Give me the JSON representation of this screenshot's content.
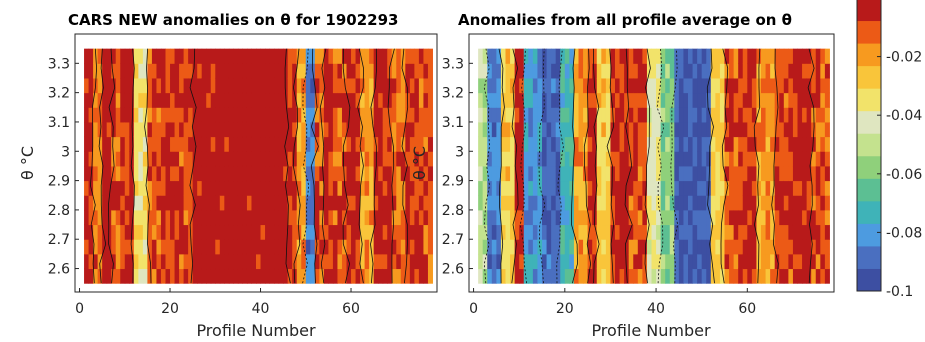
{
  "chart_data": [
    {
      "type": "heatmap",
      "title": "CARS NEW anomalies on θ for 1902293",
      "xlabel": "Profile Number",
      "ylabel": "θ °C",
      "xlim": [
        -1,
        79
      ],
      "ylim": [
        2.52,
        3.4
      ],
      "xticks": [
        0,
        20,
        40,
        60
      ],
      "yticks": [
        2.6,
        2.7,
        2.8,
        2.9,
        3,
        3.1,
        3.2,
        3.3
      ],
      "ytick_labels": [
        "2.6",
        "2.7",
        "2.8",
        "2.9",
        "3",
        "3.1",
        "3.2",
        "3.3"
      ],
      "x_range_profiles": [
        1,
        78
      ],
      "y_range_theta": [
        2.55,
        3.35
      ],
      "contours": true,
      "bands": [
        {
          "x": [
            1,
            3
          ],
          "value": -0.003
        },
        {
          "x": [
            3,
            5
          ],
          "value": -0.015
        },
        {
          "x": [
            5,
            7
          ],
          "value": 0.0
        },
        {
          "x": [
            7,
            9
          ],
          "value": -0.01
        },
        {
          "x": [
            9,
            12
          ],
          "value": -0.005
        },
        {
          "x": [
            12,
            15
          ],
          "value": -0.035
        },
        {
          "x": [
            15,
            18
          ],
          "value": -0.01
        },
        {
          "x": [
            18,
            22
          ],
          "value": -0.006
        },
        {
          "x": [
            22,
            25
          ],
          "value": -0.008
        },
        {
          "x": [
            25,
            46
          ],
          "value": 0.0
        },
        {
          "x": [
            46,
            48
          ],
          "value": -0.006
        },
        {
          "x": [
            48,
            50
          ],
          "value": -0.02
        },
        {
          "x": [
            50,
            52
          ],
          "value": -0.085
        },
        {
          "x": [
            52,
            54
          ],
          "value": -0.012
        },
        {
          "x": [
            54,
            56
          ],
          "value": -0.005
        },
        {
          "x": [
            56,
            59
          ],
          "value": -0.01
        },
        {
          "x": [
            59,
            62
          ],
          "value": -0.004
        },
        {
          "x": [
            62,
            65
          ],
          "value": -0.02
        },
        {
          "x": [
            65,
            69
          ],
          "value": -0.005
        },
        {
          "x": [
            69,
            72
          ],
          "value": -0.012
        },
        {
          "x": [
            72,
            75
          ],
          "value": -0.006
        },
        {
          "x": [
            75,
            78
          ],
          "value": -0.009
        }
      ]
    },
    {
      "type": "heatmap",
      "title": "Anomalies from all profile average on θ",
      "xlabel": "Profile Number",
      "ylabel": "θ °C",
      "xlim": [
        -1,
        79
      ],
      "ylim": [
        2.52,
        3.4
      ],
      "xticks": [
        0,
        20,
        40,
        60
      ],
      "yticks": [
        2.6,
        2.7,
        2.8,
        2.9,
        3,
        3.1,
        3.2,
        3.3
      ],
      "ytick_labels": [
        "2.6",
        "2.7",
        "2.8",
        "2.9",
        "3",
        "3.1",
        "3.2",
        "3.3"
      ],
      "x_range_profiles": [
        1,
        78
      ],
      "y_range_theta": [
        2.55,
        3.35
      ],
      "contours": true,
      "bands": [
        {
          "x": [
            1,
            3
          ],
          "value": -0.05
        },
        {
          "x": [
            3,
            6
          ],
          "value": -0.085
        },
        {
          "x": [
            6,
            9
          ],
          "value": -0.03
        },
        {
          "x": [
            9,
            11
          ],
          "value": -0.002
        },
        {
          "x": [
            11,
            15
          ],
          "value": -0.08
        },
        {
          "x": [
            15,
            19
          ],
          "value": -0.09
        },
        {
          "x": [
            19,
            22
          ],
          "value": -0.07
        },
        {
          "x": [
            22,
            25
          ],
          "value": -0.02
        },
        {
          "x": [
            25,
            27
          ],
          "value": -0.006
        },
        {
          "x": [
            27,
            30
          ],
          "value": -0.03
        },
        {
          "x": [
            30,
            34
          ],
          "value": -0.004
        },
        {
          "x": [
            34,
            38
          ],
          "value": -0.01
        },
        {
          "x": [
            38,
            41
          ],
          "value": -0.04
        },
        {
          "x": [
            41,
            44
          ],
          "value": -0.06
        },
        {
          "x": [
            44,
            52
          ],
          "value": -0.093
        },
        {
          "x": [
            52,
            55
          ],
          "value": -0.03
        },
        {
          "x": [
            55,
            58
          ],
          "value": -0.01
        },
        {
          "x": [
            58,
            62
          ],
          "value": -0.006
        },
        {
          "x": [
            62,
            66
          ],
          "value": -0.02
        },
        {
          "x": [
            66,
            70
          ],
          "value": -0.008
        },
        {
          "x": [
            70,
            74
          ],
          "value": -0.004
        },
        {
          "x": [
            74,
            78
          ],
          "value": -0.012
        }
      ]
    }
  ],
  "colorbar": {
    "min": -0.1,
    "max": 0.0,
    "ticks": [
      -0.02,
      -0.04,
      -0.06,
      -0.08,
      -0.1
    ],
    "tick_labels": [
      "-0.02",
      "-0.04",
      "-0.06",
      "-0.08",
      "-0.1"
    ],
    "colors": [
      "#3d4fa2",
      "#4a6fc0",
      "#4d9be0",
      "#3fb3b8",
      "#5cbf93",
      "#8fd07b",
      "#c4e28e",
      "#dfe6c0",
      "#f2e36a",
      "#f9c53a",
      "#f79a1f",
      "#ec5a16",
      "#b81a1a"
    ]
  }
}
